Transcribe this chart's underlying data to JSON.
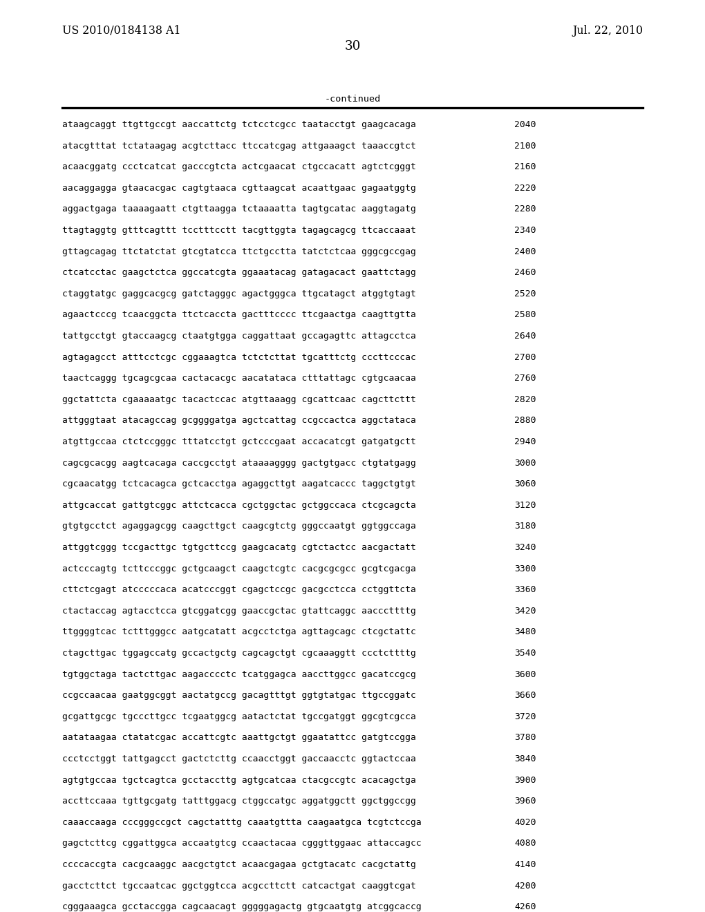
{
  "header_left": "US 2010/0184138 A1",
  "header_right": "Jul. 22, 2010",
  "page_number": "30",
  "continued_label": "-continued",
  "background_color": "#ffffff",
  "text_color": "#000000",
  "font_size_header": 9.5,
  "font_size_body": 7.8,
  "font_size_page": 11,
  "sequence_lines": [
    [
      "ataagcaggt ttgttgccgt aaccattctg tctcctcgcc taatacctgt gaagcacaga",
      "2040"
    ],
    [
      "atacgtttat tctataagag acgtcttacc ttccatcgag attgaaagct taaaccgtct",
      "2100"
    ],
    [
      "acaacggatg ccctcatcat gacccgtcta actcgaacat ctgccacatt agtctcgggt",
      "2160"
    ],
    [
      "aacaggagga gtaacacgac cagtgtaaca cgttaagcat acaattgaac gagaatggtg",
      "2220"
    ],
    [
      "aggactgaga taaaagaatt ctgttaagga tctaaaatta tagtgcatac aaggtagatg",
      "2280"
    ],
    [
      "ttagtaggtg gtttcagttt tcctttcctt tacgttggta tagagcagcg ttcaccaaat",
      "2340"
    ],
    [
      "gttagcagag ttctatctat gtcgtatcca ttctgcctta tatctctcaa gggcgccgag",
      "2400"
    ],
    [
      "ctcatcctac gaagctctca ggccatcgta ggaaatacag gatagacact gaattctagg",
      "2460"
    ],
    [
      "ctaggtatgc gaggcacgcg gatctagggc agactgggca ttgcatagct atggtgtagt",
      "2520"
    ],
    [
      "agaactcccg tcaacggcta ttctcaccta gactttcccc ttcgaactga caagttgtta",
      "2580"
    ],
    [
      "tattgcctgt gtaccaagcg ctaatgtgga caggattaat gccagagttc attagcctca",
      "2640"
    ],
    [
      "agtagagcct atttcctcgc cggaaagtca tctctcttat tgcatttctg cccttcccac",
      "2700"
    ],
    [
      "taactcaggg tgcagcgcaa cactacacgc aacatataca ctttattagc cgtgcaacaa",
      "2760"
    ],
    [
      "ggctattcta cgaaaaatgc tacactccac atgttaaagg cgcattcaac cagcttcttt",
      "2820"
    ],
    [
      "attgggtaat atacagccag gcggggatga agctcattag ccgccactca aggctataca",
      "2880"
    ],
    [
      "atgttgccaa ctctccgggc tttatcctgt gctcccgaat accacatcgt gatgatgctt",
      "2940"
    ],
    [
      "cagcgcacgg aagtcacaga caccgcctgt ataaaagggg gactgtgacc ctgtatgagg",
      "3000"
    ],
    [
      "cgcaacatgg tctcacagca gctcacctga agaggcttgt aagatcaccc taggctgtgt",
      "3060"
    ],
    [
      "attgcaccat gattgtcggc attctcacca cgctggctac gctggccaca ctcgcagcta",
      "3120"
    ],
    [
      "gtgtgcctct agaggagcgg caagcttgct caagcgtctg gggccaatgt ggtggccaga",
      "3180"
    ],
    [
      "attggtcggg tccgacttgc tgtgcttccg gaagcacatg cgtctactcc aacgactatt",
      "3240"
    ],
    [
      "actcccagtg tcttcccggc gctgcaagct caagctcgtc cacgcgcgcc gcgtcgacga",
      "3300"
    ],
    [
      "cttctcgagt atcccccaca acatcccggt cgagctccgc gacgcctcca cctggttcta",
      "3360"
    ],
    [
      "ctactaccag agtacctcca gtcggatcgg gaaccgctac gtattcaggc aacccttttg",
      "3420"
    ],
    [
      "ttggggtcac tctttgggcc aatgcatatt acgcctctga agttagcagc ctcgctattc",
      "3480"
    ],
    [
      "ctagcttgac tggagccatg gccactgctg cagcagctgt cgcaaaggtt ccctcttttg",
      "3540"
    ],
    [
      "tgtggctaga tactcttgac aagacccctc tcatggagca aaccttggcc gacatccgcg",
      "3600"
    ],
    [
      "ccgccaacaa gaatggcggt aactatgccg gacagtttgt ggtgtatgac ttgccggatc",
      "3660"
    ],
    [
      "gcgattgcgc tgcccttgcc tcgaatggcg aatactctat tgccgatggt ggcgtcgcca",
      "3720"
    ],
    [
      "aatataagaa ctatatcgac accattcgtc aaattgctgt ggaatattcc gatgtccgga",
      "3780"
    ],
    [
      "ccctcctggt tattgagcct gactctcttg ccaacctggt gaccaacctc ggtactccaa",
      "3840"
    ],
    [
      "agtgtgccaa tgctcagtca gcctaccttg agtgcatcaa ctacgccgtc acacagctga",
      "3900"
    ],
    [
      "accttccaaa tgttgcgatg tatttggacg ctggccatgc aggatggctt ggctggccgg",
      "3960"
    ],
    [
      "caaaccaaga cccgggccgct cagctatttg caaatgttta caagaatgca tcgtctccga",
      "4020"
    ],
    [
      "gagctcttcg cggattggca accaatgtcg ccaactacaa cgggttggaac attaccagcc",
      "4080"
    ],
    [
      "ccccaccgta cacgcaaggc aacgctgtct acaacgagaa gctgtacatc cacgctattg",
      "4140"
    ],
    [
      "gacctcttct tgccaatcac ggctggtcca acgccttctt catcactgat caaggtcgat",
      "4200"
    ],
    [
      "cgggaaagca gcctaccgga cagcaacagt gggggagactg gtgcaatgtg atcggcaccg",
      "4260"
    ]
  ]
}
